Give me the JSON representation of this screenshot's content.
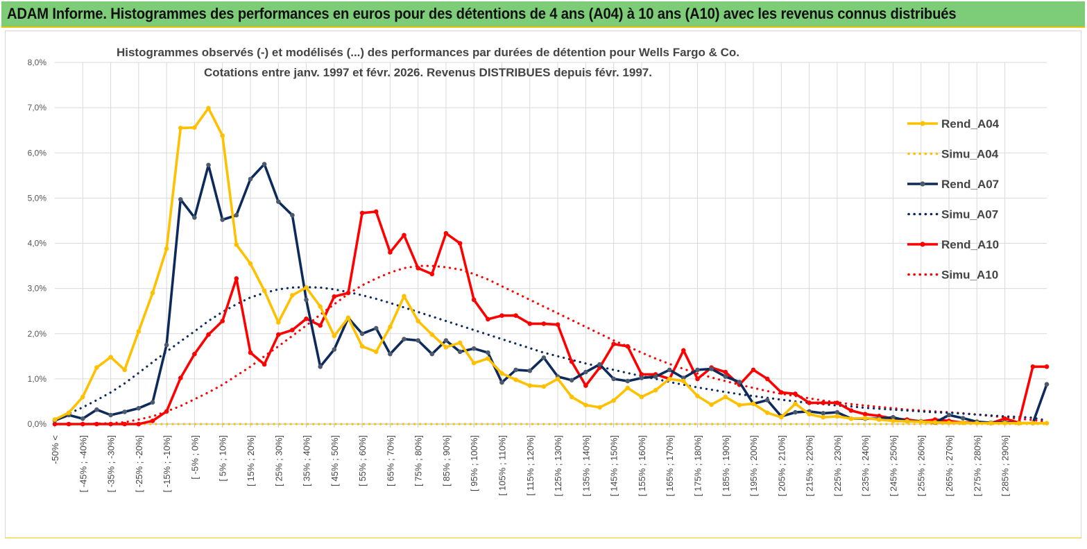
{
  "banner": {
    "title": "ADAM Informe. Histogrammes des performances en euros pour des détentions de 4 ans (A04) à 10 ans (A10) avec les revenus connus distribués"
  },
  "colors": {
    "banner_bg": "#7dcd78",
    "A04": "#ffc000",
    "A07": "#0d2a5c",
    "A10": "#ff0000",
    "grid": "#d9d9d9"
  },
  "chart_data": {
    "type": "line",
    "title_line1": "Histogrammes observés (-) et modélisés (...) des performances par durées de détention pour Wells Fargo & Co.",
    "title_line2": "Cotations entre janv. 1997 et févr. 2026. Revenus DISTRIBUES depuis févr. 1997.",
    "ylim": [
      0,
      8
    ],
    "yticks": [
      "0,0%",
      "1,0%",
      "2,0%",
      "3,0%",
      "4,0%",
      "5,0%",
      "6,0%",
      "7,0%",
      "8,0%"
    ],
    "xtick_labels": [
      "-50% <",
      "[ -45% ; -40%]",
      "[ -35% ; -30%]",
      "[ -25% ; -20%]",
      "[ -15% ; -10%]",
      "[ -5% ; 0%]",
      "[ 5% ; 10%]",
      "[ 15% ; 20%]",
      "[ 25% ; 30%]",
      "[ 35% ; 40%]",
      "[ 45% ; 50%]",
      "[ 55% ; 60%]",
      "[ 65% ; 70%]",
      "[ 75% ; 80%]",
      "[ 85% ; 90%]",
      "[ 95% ; 100%]",
      "[ 105% ; 110%]",
      "[ 115% ; 120%]",
      "[ 125% ; 130%]",
      "[ 135% ; 140%]",
      "[ 145% ; 150%]",
      "[ 155% ; 160%]",
      "[ 165% ; 170%]",
      "[ 175% ; 180%]",
      "[ 185% ; 190%]",
      "[ 195% ; 200%]",
      "[ 205% ; 210%]",
      "[ 215% ; 220%]",
      "[ 225% ; 230%]",
      "[ 235% ; 240%]",
      "[ 245% ; 250%]",
      "[ 255% ; 260%]",
      "[ 265% ; 270%]",
      "[ 275% ; 280%]",
      "[ 285% ; 290%]"
    ],
    "series": [
      {
        "name": "Rend_A04",
        "style": "solid",
        "color": "#ffc000",
        "values": [
          0.1,
          0.25,
          0.6,
          1.25,
          1.48,
          1.2,
          2.05,
          2.9,
          3.88,
          6.55,
          6.56,
          6.99,
          6.38,
          3.97,
          3.55,
          2.95,
          2.25,
          2.85,
          3.02,
          2.6,
          1.95,
          2.35,
          1.72,
          1.6,
          2.15,
          2.83,
          2.28,
          1.98,
          1.7,
          1.8,
          1.35,
          1.45,
          1.12,
          0.98,
          0.85,
          0.83,
          1.0,
          0.6,
          0.42,
          0.37,
          0.52,
          0.8,
          0.6,
          0.75,
          1.0,
          0.95,
          0.62,
          0.43,
          0.6,
          0.42,
          0.45,
          0.25,
          0.15,
          0.45,
          0.22,
          0.15,
          0.17,
          0.12,
          0.13,
          0.1,
          0.07,
          0.06,
          0.05,
          0.04,
          0.03,
          0.03,
          0.02,
          0.02,
          0.02,
          0.02,
          0.02,
          0.02
        ]
      },
      {
        "name": "Simu_A04",
        "style": "dotted",
        "color": "#ffc000",
        "values": [
          0.0,
          0.0,
          0.0,
          0.0,
          0.0,
          0.0,
          0.0,
          0.0,
          0.0,
          0.0,
          0.0,
          0.0,
          0.0,
          0.0,
          0.0,
          0.0,
          0.0,
          0.0,
          0.0,
          0.0,
          0.0,
          0.0,
          0.0,
          0.0,
          0.0,
          0.0,
          0.0,
          0.0,
          0.0,
          0.0,
          0.0,
          0.0,
          0.0,
          0.0,
          0.0,
          0.0,
          0.0,
          0.0,
          0.0,
          0.0,
          0.0,
          0.0,
          0.0,
          0.0,
          0.0,
          0.0,
          0.0,
          0.0,
          0.0,
          0.0,
          0.0,
          0.0,
          0.0,
          0.0,
          0.0,
          0.0,
          0.0,
          0.0,
          0.0,
          0.0,
          0.0,
          0.0,
          0.0,
          0.0,
          0.0,
          0.0,
          0.0,
          0.0,
          0.0,
          0.0,
          0.0,
          0.0
        ]
      },
      {
        "name": "Rend_A07",
        "style": "solid",
        "color": "#0d2a5c",
        "values": [
          0.08,
          0.2,
          0.12,
          0.32,
          0.2,
          0.27,
          0.35,
          0.48,
          1.75,
          4.97,
          4.57,
          5.73,
          4.52,
          4.62,
          5.42,
          5.75,
          4.92,
          4.62,
          2.75,
          1.27,
          1.65,
          2.35,
          2.0,
          2.12,
          1.55,
          1.88,
          1.85,
          1.55,
          1.85,
          1.6,
          1.67,
          1.58,
          0.92,
          1.2,
          1.18,
          1.47,
          1.05,
          0.97,
          1.15,
          1.32,
          1.0,
          0.95,
          1.02,
          1.05,
          1.2,
          1.02,
          1.2,
          1.22,
          1.05,
          0.93,
          0.45,
          0.53,
          0.17,
          0.26,
          0.28,
          0.24,
          0.26,
          0.12,
          0.12,
          0.12,
          0.15,
          0.07,
          0.06,
          0.03,
          0.2,
          0.13,
          0.05,
          0.03,
          0.04,
          0.02,
          0.02,
          0.88
        ]
      },
      {
        "name": "Simu_A07",
        "style": "dotted",
        "color": "#0d2a5c",
        "values": [
          0.1,
          0.23,
          0.37,
          0.53,
          0.7,
          0.9,
          1.13,
          1.37,
          1.6,
          1.83,
          2.05,
          2.28,
          2.48,
          2.65,
          2.8,
          2.9,
          2.98,
          3.02,
          3.03,
          3.02,
          2.98,
          2.92,
          2.85,
          2.77,
          2.68,
          2.58,
          2.48,
          2.38,
          2.28,
          2.18,
          2.08,
          1.98,
          1.88,
          1.78,
          1.68,
          1.58,
          1.5,
          1.42,
          1.34,
          1.27,
          1.2,
          1.13,
          1.06,
          1.0,
          0.93,
          0.87,
          0.81,
          0.76,
          0.71,
          0.66,
          0.62,
          0.58,
          0.54,
          0.5,
          0.47,
          0.44,
          0.41,
          0.39,
          0.36,
          0.34,
          0.32,
          0.3,
          0.28,
          0.26,
          0.25,
          0.23,
          0.21,
          0.19,
          0.17,
          0.16,
          0.14,
          0.08
        ]
      },
      {
        "name": "Rend_A10",
        "style": "solid",
        "color": "#ff0000",
        "values": [
          0.0,
          0.0,
          0.0,
          0.0,
          0.0,
          0.0,
          0.0,
          0.07,
          0.28,
          1.02,
          1.55,
          1.98,
          2.28,
          3.22,
          1.58,
          1.32,
          1.98,
          2.08,
          2.33,
          2.18,
          2.82,
          2.9,
          4.67,
          4.7,
          3.8,
          4.18,
          3.45,
          3.32,
          4.22,
          4.0,
          2.75,
          2.32,
          2.4,
          2.4,
          2.22,
          2.22,
          2.2,
          1.38,
          0.85,
          1.25,
          1.77,
          1.72,
          1.1,
          1.1,
          1.0,
          1.63,
          1.0,
          1.25,
          1.15,
          0.87,
          1.2,
          1.0,
          0.7,
          0.67,
          0.47,
          0.47,
          0.47,
          0.3,
          0.22,
          0.18,
          0.12,
          0.1,
          0.06,
          0.1,
          0.07,
          0.03,
          0.05,
          0.02,
          0.12,
          0.03,
          1.27,
          1.27
        ]
      },
      {
        "name": "Simu_A10",
        "style": "dotted",
        "color": "#ff0000",
        "values": [
          0.0,
          0.0,
          0.0,
          0.01,
          0.02,
          0.04,
          0.1,
          0.17,
          0.28,
          0.4,
          0.55,
          0.7,
          0.87,
          1.07,
          1.27,
          1.5,
          1.72,
          1.95,
          2.18,
          2.42,
          2.65,
          2.88,
          3.07,
          3.22,
          3.35,
          3.45,
          3.5,
          3.5,
          3.47,
          3.42,
          3.32,
          3.2,
          3.05,
          2.9,
          2.75,
          2.6,
          2.45,
          2.3,
          2.15,
          2.0,
          1.85,
          1.72,
          1.58,
          1.45,
          1.33,
          1.22,
          1.12,
          1.03,
          0.95,
          0.87,
          0.8,
          0.73,
          0.67,
          0.62,
          0.57,
          0.52,
          0.48,
          0.44,
          0.41,
          0.38,
          0.35,
          0.32,
          0.3,
          0.28,
          0.26,
          0.24,
          0.21,
          0.18,
          0.15,
          0.12,
          0.09,
          0.05
        ]
      }
    ]
  }
}
